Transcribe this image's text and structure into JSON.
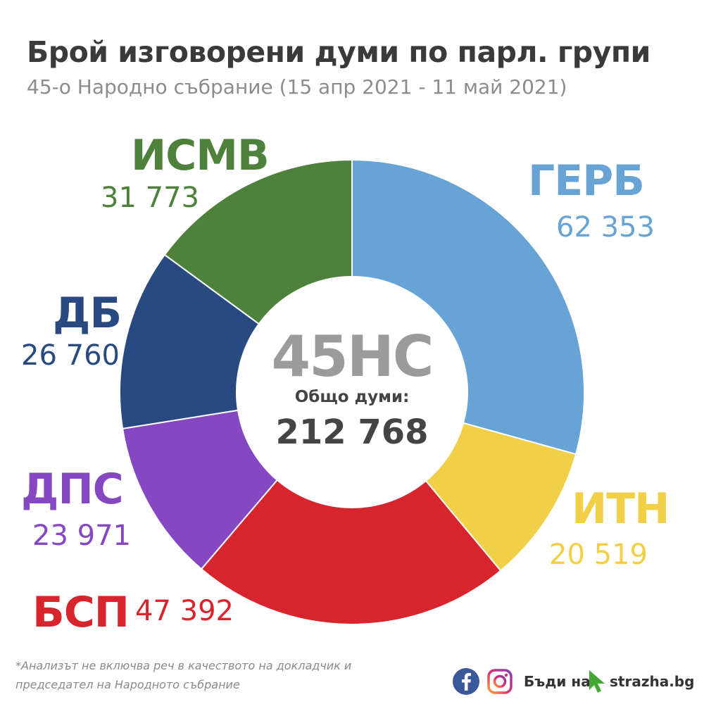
{
  "header": {
    "title": "Брой изговорени думи по парл. групи",
    "subtitle": "45-о Народно събрание (15 апр 2021 - 11 май 2021)"
  },
  "center": {
    "big": "45НС",
    "label": "Общо думи:",
    "total": "212 768"
  },
  "labels": {
    "gerb": {
      "name": "ГЕРБ",
      "value": "62 353"
    },
    "itn": {
      "name": "ИТН",
      "value": "20 519"
    },
    "bsp": {
      "name": "БСП",
      "value": "47 392"
    },
    "dps": {
      "name": "ДПС",
      "value": "23 971"
    },
    "db": {
      "name": "ДБ",
      "value": "26 760"
    },
    "ismv": {
      "name": "ИСМВ",
      "value": "31 773"
    }
  },
  "chart_data": {
    "type": "pie",
    "donut": true,
    "start_angle": "top",
    "direction": "clockwise",
    "categories": [
      "ГЕРБ",
      "ИТН",
      "БСП",
      "ДПС",
      "ДБ",
      "ИСМВ"
    ],
    "values": [
      62353,
      20519,
      47392,
      23971,
      26760,
      31773
    ],
    "colors": [
      "#67a3d4",
      "#f1cf46",
      "#d8242c",
      "#8648c2",
      "#284a80",
      "#4e813c"
    ],
    "total": 212768
  },
  "footnote": {
    "line1": "*Анализът не включва реч в качеството на докладчик и",
    "line2": "председател на Народното събрание"
  },
  "footer": {
    "facebook_icon": "facebook-icon",
    "instagram_icon": "instagram-icon",
    "brand_prefix": "Бъди на",
    "brand_site": "strazha.bg"
  }
}
